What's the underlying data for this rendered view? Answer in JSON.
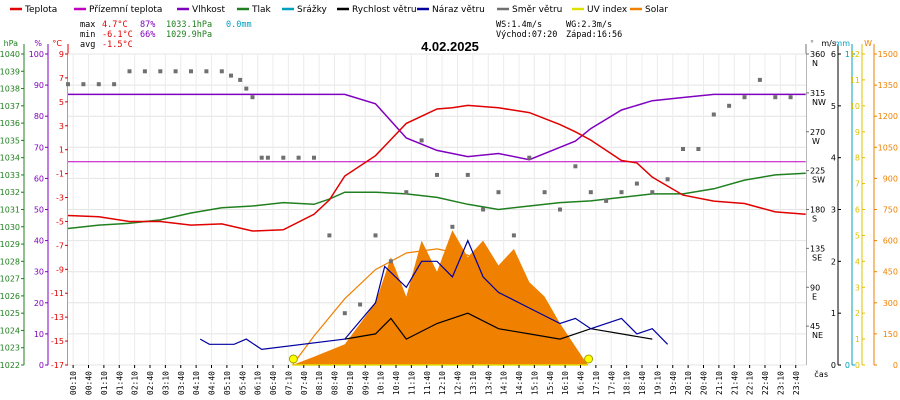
{
  "legend": [
    {
      "label": "Teplota",
      "color": "#e00000"
    },
    {
      "label": "Přízemní teplota",
      "color": "#c000c0"
    },
    {
      "label": "Vlhkost",
      "color": "#8000c0"
    },
    {
      "label": "Tlak",
      "color": "#208020"
    },
    {
      "label": "Srážky",
      "color": "#00a0c0"
    },
    {
      "label": "Rychlost větru",
      "color": "#000000"
    },
    {
      "label": "Náraz větru",
      "color": "#0000a0"
    },
    {
      "label": "Směr větru",
      "color": "#707070"
    },
    {
      "label": "UV index",
      "color": "#e0e000"
    },
    {
      "label": "Solar",
      "color": "#f08000"
    }
  ],
  "stats": {
    "max_label": "max",
    "max_temp": "4.7°C",
    "max_hum": "87%",
    "max_press": "1033.1hPa",
    "max_rain": "0.0mm",
    "min_label": "min",
    "min_temp": "-6.1°C",
    "min_hum": "66%",
    "min_press": "1029.9hPa",
    "avg_label": "avg",
    "avg_temp": "-1.5°C"
  },
  "wind_info": {
    "ws": "WS:1.4m/s",
    "wg": "WG:2.3m/s",
    "sunrise": "Východ:07:20",
    "sunset": "Západ:16:56"
  },
  "chart_data": {
    "type": "line",
    "title": "4.02.2025",
    "x_unit": "čas",
    "x_ticks": [
      "00:10",
      "00:40",
      "01:10",
      "01:40",
      "02:10",
      "02:40",
      "03:10",
      "03:40",
      "04:10",
      "04:40",
      "05:10",
      "05:40",
      "06:10",
      "06:40",
      "07:10",
      "07:40",
      "08:10",
      "08:40",
      "09:10",
      "09:40",
      "10:10",
      "10:40",
      "11:10",
      "11:40",
      "12:10",
      "12:40",
      "13:10",
      "13:40",
      "14:10",
      "14:40",
      "15:10",
      "15:40",
      "16:10",
      "16:40",
      "17:10",
      "17:40",
      "18:10",
      "18:40",
      "19:10",
      "19:40",
      "20:10",
      "20:40",
      "21:10",
      "21:40",
      "22:10",
      "22:40",
      "23:10",
      "23:40"
    ],
    "axes": {
      "pressure": {
        "unit": "hPa",
        "range": [
          1022,
          1040
        ],
        "ticks": [
          1040,
          1039,
          1038,
          1037,
          1036,
          1035,
          1034,
          1033,
          1032,
          1031,
          1030,
          1029,
          1028,
          1027,
          1026,
          1025,
          1024,
          1023,
          1022
        ]
      },
      "humidity": {
        "unit": "%",
        "range": [
          0,
          100
        ],
        "ticks": [
          100,
          90,
          80,
          70,
          60,
          50,
          40,
          30,
          20,
          10,
          0
        ]
      },
      "temperature": {
        "unit": "°C",
        "range": [
          -17,
          9
        ],
        "ticks": [
          9,
          7,
          5,
          3,
          1,
          -1,
          -3,
          -5,
          -7,
          -9,
          -11,
          -13,
          -15,
          -17
        ]
      },
      "direction": {
        "unit": "°",
        "range": [
          0,
          360
        ],
        "ticks": [
          360,
          315,
          270,
          225,
          180,
          135,
          90,
          45
        ],
        "labels": [
          "N",
          "NW",
          "W",
          "SW",
          "S",
          "SE",
          "E",
          "NE"
        ]
      },
      "wind": {
        "unit": "m/s",
        "range": [
          0,
          6
        ],
        "ticks": [
          6,
          5,
          4,
          3,
          2,
          1,
          0
        ]
      },
      "rain": {
        "unit": "mm",
        "range": [
          0,
          1
        ],
        "ticks": [
          1,
          0
        ]
      },
      "uv": {
        "unit": "",
        "range": [
          0,
          12
        ],
        "ticks": [
          12,
          11,
          10,
          9,
          8,
          7,
          6,
          5,
          4,
          3,
          2,
          1,
          0
        ]
      },
      "solar": {
        "unit": "W",
        "range": [
          0,
          1500
        ],
        "ticks": [
          1500,
          1350,
          1200,
          1050,
          900,
          750,
          600,
          450,
          300,
          150,
          0
        ]
      }
    },
    "series": {
      "temperature": {
        "x": [
          0,
          1,
          2,
          3,
          4,
          5,
          6,
          7,
          8,
          8.5,
          9,
          10,
          11,
          12,
          12.5,
          13,
          14,
          15,
          16,
          16.5,
          17,
          18,
          18.5,
          19,
          20,
          21,
          22,
          23,
          23.99
        ],
        "y": [
          -4.5,
          -4.6,
          -5,
          -5,
          -5.3,
          -5.2,
          -5.8,
          -5.7,
          -4.4,
          -3.2,
          -1.2,
          0.5,
          3.2,
          4.4,
          4.5,
          4.7,
          4.5,
          4.1,
          3.1,
          2.5,
          1.8,
          0.1,
          -0.1,
          -1.3,
          -2.8,
          -3.3,
          -3.5,
          -4.2,
          -4.4
        ]
      },
      "ground_temperature": {
        "x": [
          0,
          23.99
        ],
        "y": [
          0,
          0
        ]
      },
      "humidity": {
        "x": [
          0,
          1,
          2,
          3,
          4,
          5,
          6,
          7,
          8,
          9,
          10,
          11,
          12,
          13,
          14,
          15,
          16,
          16.5,
          17,
          18,
          19,
          20,
          21,
          22,
          23,
          23.99
        ],
        "y": [
          87,
          87,
          87,
          87,
          87,
          87,
          87,
          87,
          87,
          87,
          84,
          73,
          69,
          67,
          68,
          66,
          70,
          72,
          76,
          82,
          85,
          86,
          87,
          87,
          87,
          87
        ]
      },
      "pressure": {
        "x": [
          0,
          1,
          2,
          3,
          4,
          5,
          6,
          7,
          8,
          8.5,
          9,
          10,
          11,
          12,
          13,
          14,
          15,
          16,
          17,
          18,
          19,
          20,
          21,
          22,
          23,
          23.99
        ],
        "y": [
          1029.9,
          1030.1,
          1030.2,
          1030.4,
          1030.8,
          1031.1,
          1031.2,
          1031.4,
          1031.3,
          1031.6,
          1032.0,
          1032.0,
          1031.9,
          1031.7,
          1031.3,
          1031.0,
          1031.2,
          1031.4,
          1031.5,
          1031.7,
          1031.9,
          1031.9,
          1032.2,
          1032.7,
          1033.0,
          1033.1
        ]
      },
      "solar": {
        "x": [
          7.3,
          8,
          9,
          10,
          10.5,
          11,
          11.5,
          12,
          12.5,
          13,
          13.5,
          14,
          14.5,
          15,
          15.5,
          16,
          16.9
        ],
        "y": [
          0,
          40,
          100,
          300,
          520,
          330,
          600,
          450,
          650,
          520,
          600,
          480,
          560,
          400,
          330,
          200,
          0
        ]
      },
      "solar_clear": {
        "x": [
          7.3,
          8,
          9,
          10,
          11,
          12,
          13,
          14,
          15,
          16,
          16.9
        ],
        "y": [
          0,
          140,
          320,
          460,
          540,
          560,
          530,
          440,
          300,
          120,
          0
        ]
      },
      "wind_speed": {
        "x": [
          9,
          10,
          10.5,
          11,
          12,
          13,
          14,
          15,
          16,
          17,
          18,
          19
        ],
        "y": [
          0.5,
          0.6,
          0.9,
          0.5,
          0.8,
          1.0,
          0.7,
          0.6,
          0.5,
          0.7,
          0.6,
          0.5
        ]
      },
      "wind_gust": {
        "x": [
          4.3,
          4.6,
          5.4,
          5.8,
          6.3,
          9,
          10,
          10.3,
          11,
          11.5,
          12,
          12.5,
          13,
          13.5,
          14,
          15,
          16,
          16.5,
          17,
          18,
          18.5,
          19,
          19.5
        ],
        "y": [
          0.5,
          0.4,
          0.4,
          0.5,
          0.3,
          0.5,
          1.2,
          1.9,
          1.5,
          2.0,
          2.0,
          1.7,
          2.4,
          1.7,
          1.4,
          1.1,
          0.8,
          0.9,
          0.7,
          0.9,
          0.6,
          0.7,
          0.4
        ]
      },
      "wind_dir": {
        "x": [
          0,
          0.5,
          1,
          1.5,
          2,
          2.5,
          3,
          3.5,
          4,
          4.5,
          5,
          5.3,
          5.6,
          5.8,
          6,
          6.3,
          6.5,
          7,
          7.5,
          8,
          8.5,
          9,
          9.5,
          10,
          10.5,
          11,
          11.5,
          12,
          12.5,
          13,
          13.5,
          14,
          14.5,
          15,
          15.5,
          16,
          16.5,
          17,
          17.5,
          18,
          18.5,
          19,
          19.5,
          20,
          20.5,
          21,
          21.5,
          22,
          22.5,
          23,
          23.5
        ],
        "y": [
          325,
          325,
          325,
          325,
          340,
          340,
          340,
          340,
          340,
          340,
          340,
          335,
          330,
          320,
          310,
          240,
          240,
          240,
          240,
          240,
          150,
          60,
          70,
          150,
          120,
          200,
          260,
          220,
          160,
          220,
          180,
          200,
          150,
          240,
          200,
          180,
          230,
          200,
          190,
          200,
          210,
          200,
          215,
          250,
          250,
          290,
          300,
          310,
          330,
          310,
          310
        ]
      },
      "uv": {
        "x": [
          7.3,
          16.9
        ],
        "y": [
          0,
          0
        ]
      }
    },
    "sun_markers": {
      "sunrise": 7.33,
      "sunset": 16.93
    }
  }
}
